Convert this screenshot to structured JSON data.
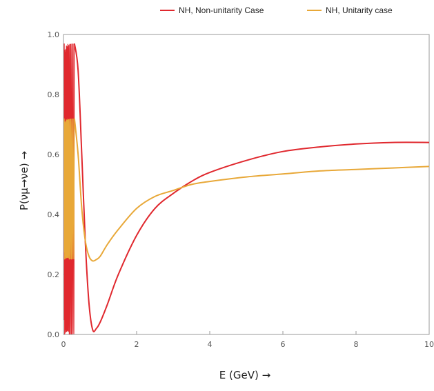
{
  "chart_data": {
    "type": "line",
    "xlabel": "E (GeV) →",
    "ylabel": "P(νμ→νe) →",
    "xlim": [
      0,
      10
    ],
    "ylim": [
      0,
      1
    ],
    "x_ticks": [
      "0",
      "2",
      "4",
      "6",
      "8",
      "10"
    ],
    "y_ticks": [
      "0.0",
      "0.2",
      "0.4",
      "0.6",
      "0.8",
      "1.0"
    ],
    "legend_position": "top-right",
    "series": [
      {
        "name": "NH, Non-unitarity Case",
        "color": "#e0282e",
        "x": [
          0.3,
          0.4,
          0.5,
          0.6,
          0.7,
          0.8,
          0.9,
          1.0,
          1.2,
          1.5,
          2.0,
          2.5,
          3.0,
          3.5,
          4.0,
          5.0,
          6.0,
          7.0,
          8.0,
          9.0,
          10.0
        ],
        "y": [
          0.97,
          0.88,
          0.6,
          0.3,
          0.1,
          0.015,
          0.02,
          0.04,
          0.1,
          0.2,
          0.33,
          0.42,
          0.47,
          0.51,
          0.54,
          0.58,
          0.61,
          0.625,
          0.635,
          0.64,
          0.64
        ]
      },
      {
        "name": "NH, Unitarity case",
        "color": "#e8a838",
        "x": [
          0.3,
          0.4,
          0.5,
          0.6,
          0.7,
          0.8,
          0.9,
          1.0,
          1.2,
          1.5,
          2.0,
          2.5,
          3.0,
          3.5,
          4.0,
          5.0,
          6.0,
          7.0,
          8.0,
          9.0,
          10.0
        ],
        "y": [
          0.72,
          0.6,
          0.42,
          0.31,
          0.26,
          0.245,
          0.25,
          0.26,
          0.3,
          0.35,
          0.42,
          0.46,
          0.48,
          0.5,
          0.51,
          0.525,
          0.535,
          0.545,
          0.55,
          0.555,
          0.56
        ]
      }
    ]
  }
}
